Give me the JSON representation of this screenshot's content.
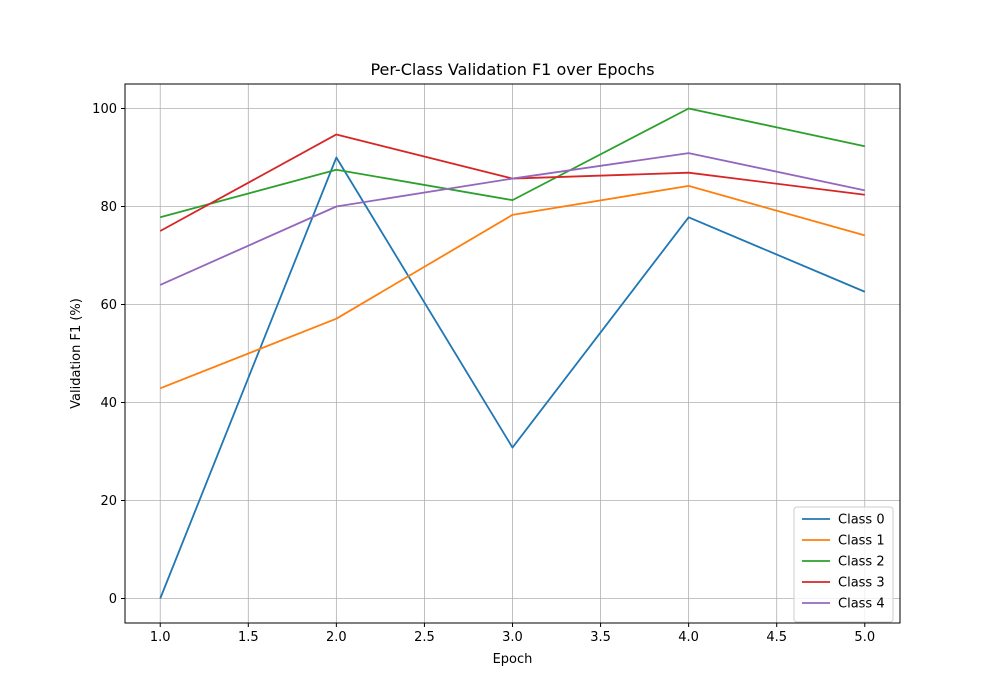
{
  "chart_data": {
    "type": "line",
    "title": "Per-Class Validation F1 over Epochs",
    "xlabel": "Epoch",
    "ylabel": "Validation F1 (%)",
    "x": [
      1,
      2,
      3,
      4,
      5
    ],
    "xlim": [
      0.8,
      5.2
    ],
    "ylim": [
      -5,
      105
    ],
    "xticks": [
      1.0,
      1.5,
      2.0,
      2.5,
      3.0,
      3.5,
      4.0,
      4.5,
      5.0
    ],
    "xtick_labels": [
      "1.0",
      "1.5",
      "2.0",
      "2.5",
      "3.0",
      "3.5",
      "4.0",
      "4.5",
      "5.0"
    ],
    "yticks": [
      0,
      20,
      40,
      60,
      80,
      100
    ],
    "ytick_labels": [
      "0",
      "20",
      "40",
      "60",
      "80",
      "100"
    ],
    "grid": true,
    "legend_position": "lower-right",
    "series": [
      {
        "name": "Class 0",
        "color": "#1f77b4",
        "values": [
          0.0,
          90.0,
          30.8,
          77.8,
          62.6
        ]
      },
      {
        "name": "Class 1",
        "color": "#ff7f0e",
        "values": [
          42.9,
          57.1,
          78.3,
          84.2,
          74.1
        ]
      },
      {
        "name": "Class 2",
        "color": "#2ca02c",
        "values": [
          77.8,
          87.5,
          81.3,
          100.0,
          92.3
        ]
      },
      {
        "name": "Class 3",
        "color": "#d62728",
        "values": [
          75.0,
          94.7,
          85.7,
          86.9,
          82.4
        ]
      },
      {
        "name": "Class 4",
        "color": "#9467bd",
        "values": [
          64.0,
          80.0,
          85.7,
          90.9,
          83.3
        ]
      }
    ]
  }
}
